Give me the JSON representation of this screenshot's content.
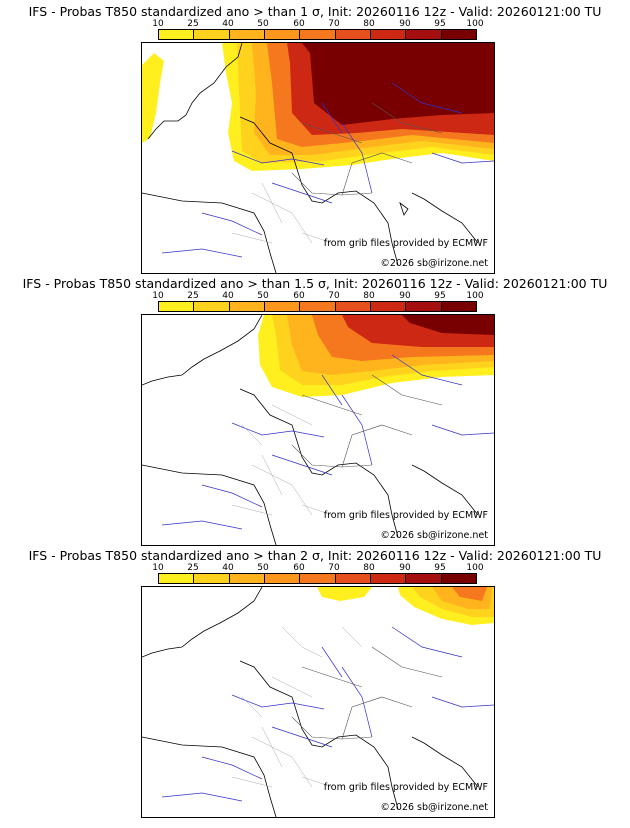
{
  "scale": {
    "labels": [
      "10",
      "25",
      "40",
      "50",
      "60",
      "70",
      "80",
      "90",
      "95",
      "100"
    ],
    "colors": [
      "#ffef1e",
      "#ffd21e",
      "#ffb41e",
      "#ff961e",
      "#f5781e",
      "#e6501e",
      "#cc2814",
      "#a50f0f",
      "#780000"
    ]
  },
  "panels": [
    {
      "title": "IFS - Probas T850  standardized ano > than 1 σ, Init: 20260116 12z - Valid: 20260121:00 TU",
      "threshold": "1 σ"
    },
    {
      "title": "IFS - Probas T850  standardized ano > than 1.5 σ, Init: 20260116 12z - Valid: 20260121:00 TU",
      "threshold": "1.5 σ"
    },
    {
      "title": "IFS - Probas T850  standardized ano > than 2 σ, Init: 20260116 12z - Valid: 20260121:00 TU",
      "threshold": "2 σ"
    }
  ],
  "credits": {
    "source": "from grib files provided by ECMWF",
    "copyright": "©2026 sb@irizone.net"
  }
}
